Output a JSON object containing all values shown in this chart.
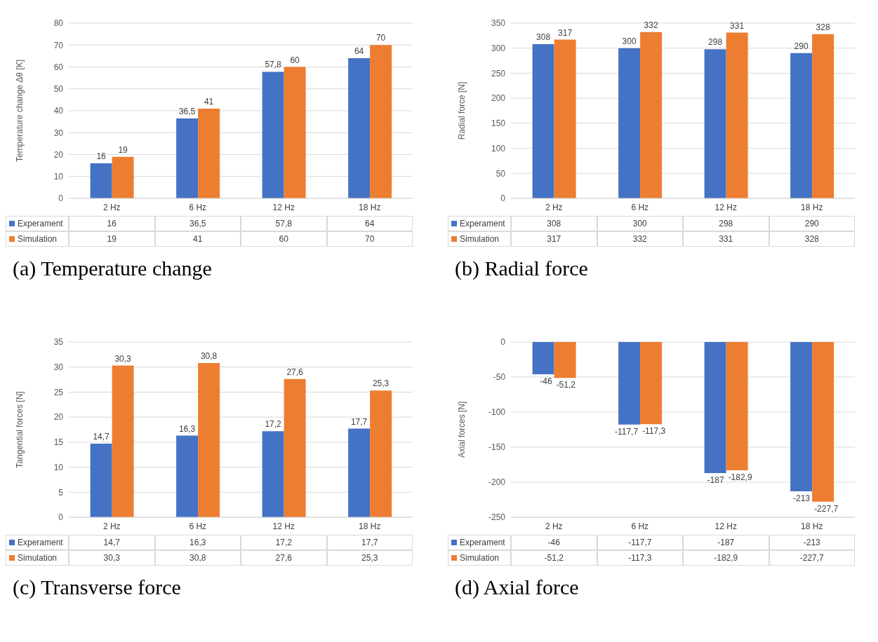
{
  "chart_data": [
    {
      "type": "bar",
      "title": "(a) Temperature change",
      "ylabel": "Temperature change  Δθ [K]",
      "categories": [
        "2 Hz",
        "6 Hz",
        "12 Hz",
        "18 Hz"
      ],
      "series": [
        {
          "name": "Experament",
          "color": "#4472c4",
          "values": [
            16,
            36.5,
            57.8,
            64
          ],
          "value_labels": [
            "16",
            "36,5",
            "57,8",
            "64"
          ]
        },
        {
          "name": "Simulation",
          "color": "#ed7d31",
          "values": [
            19,
            41,
            60,
            70
          ],
          "value_labels": [
            "19",
            "41",
            "60",
            "70"
          ]
        }
      ],
      "ylim": [
        0,
        80
      ],
      "yticks": [
        0,
        10,
        20,
        30,
        40,
        50,
        60,
        70,
        80
      ],
      "grid": "y",
      "legend": "bottom"
    },
    {
      "type": "bar",
      "title": "(b) Radial force",
      "ylabel": "Radial force  [N]",
      "categories": [
        "2 Hz",
        "6 Hz",
        "12 Hz",
        "18 Hz"
      ],
      "series": [
        {
          "name": "Experament",
          "color": "#4472c4",
          "values": [
            308,
            300,
            298,
            290
          ],
          "value_labels": [
            "308",
            "300",
            "298",
            "290"
          ]
        },
        {
          "name": "Simulation",
          "color": "#ed7d31",
          "values": [
            317,
            332,
            331,
            328
          ],
          "value_labels": [
            "317",
            "332",
            "331",
            "328"
          ]
        }
      ],
      "ylim": [
        0,
        350
      ],
      "yticks": [
        0,
        50,
        100,
        150,
        200,
        250,
        300,
        350
      ],
      "grid": "y",
      "legend": "bottom"
    },
    {
      "type": "bar",
      "title": "(c) Transverse force",
      "ylabel": "Tangential forces  [N]",
      "categories": [
        "2 Hz",
        "6 Hz",
        "12 Hz",
        "18 Hz"
      ],
      "series": [
        {
          "name": "Experament",
          "color": "#4472c4",
          "values": [
            14.7,
            16.3,
            17.2,
            17.7
          ],
          "value_labels": [
            "14,7",
            "16,3",
            "17,2",
            "17,7"
          ]
        },
        {
          "name": "Simulation",
          "color": "#ed7d31",
          "values": [
            30.3,
            30.8,
            27.6,
            25.3
          ],
          "value_labels": [
            "30,3",
            "30,8",
            "27,6",
            "25,3"
          ]
        }
      ],
      "ylim": [
        0,
        35
      ],
      "yticks": [
        0,
        5,
        10,
        15,
        20,
        25,
        30,
        35
      ],
      "grid": "y",
      "legend": "bottom"
    },
    {
      "type": "bar",
      "title": "(d) Axial force",
      "ylabel": "Axial forces  [N]",
      "categories": [
        "2 Hz",
        "6 Hz",
        "12 Hz",
        "18 Hz"
      ],
      "series": [
        {
          "name": "Experament",
          "color": "#4472c4",
          "values": [
            -46,
            -117.7,
            -187,
            -213
          ],
          "value_labels": [
            "-46",
            "-117,7",
            "-187",
            "-213"
          ]
        },
        {
          "name": "Simulation",
          "color": "#ed7d31",
          "values": [
            -51.2,
            -117.3,
            -182.9,
            -227.7
          ],
          "value_labels": [
            "-51,2",
            "-117,3",
            "-182,9",
            "-227,7"
          ]
        }
      ],
      "ylim": [
        -250,
        0
      ],
      "yticks": [
        -250,
        -200,
        -150,
        -100,
        -50,
        0
      ],
      "grid": "y",
      "legend": "bottom"
    }
  ]
}
